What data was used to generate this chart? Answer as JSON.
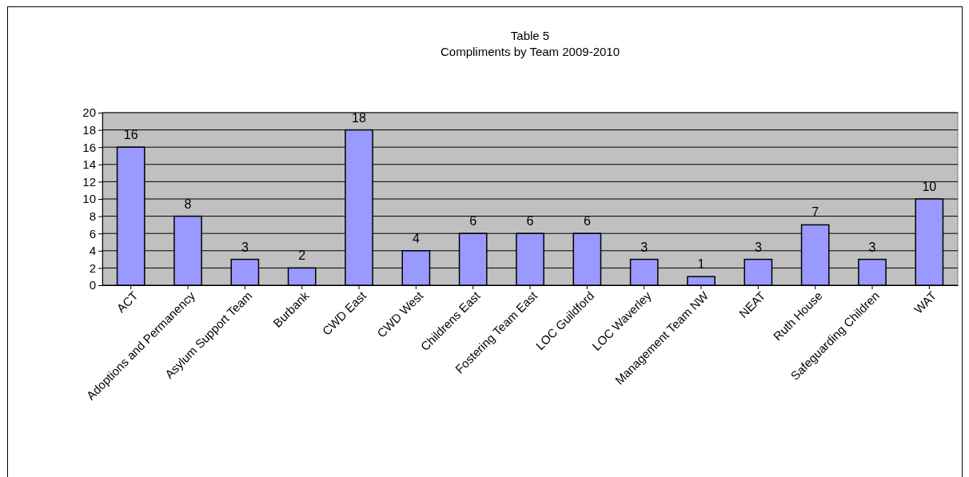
{
  "chart_data": {
    "type": "bar",
    "title": "Table 5",
    "subtitle": "Compliments by Team 2009-2010",
    "categories": [
      "ACT",
      "Adoptions and Permanency",
      "Asylum Support Team",
      "Burbank",
      "CWD East",
      "CWD West",
      "Childrens East",
      "Fostering Team East",
      "LOC Guildford",
      "LOC Waverley",
      "Management Team NW",
      "NEAT",
      "Ruth House",
      "Safeguarding Children",
      "WAT"
    ],
    "values": [
      16,
      8,
      3,
      2,
      18,
      4,
      6,
      6,
      6,
      3,
      1,
      3,
      7,
      3,
      10
    ],
    "color": "#9999ff",
    "ylim": [
      0,
      20
    ],
    "yticks": [
      0,
      2,
      4,
      6,
      8,
      10,
      12,
      14,
      16,
      18,
      20
    ],
    "grid": "y",
    "data_labels": true
  }
}
